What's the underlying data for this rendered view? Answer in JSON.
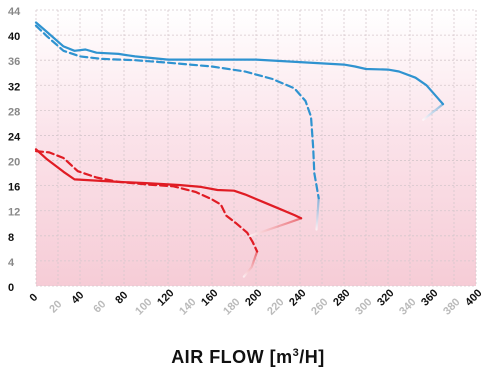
{
  "chart_data": {
    "type": "line",
    "xlabel": {
      "main": "AIR FLOW [m",
      "sup": "3",
      "tail": "/H]"
    },
    "ylabel": "",
    "title": "",
    "xlim": [
      0,
      400
    ],
    "ylim": [
      0,
      44
    ],
    "grid": true,
    "background": "pink vertical gradient",
    "x_ticks": [
      {
        "value": 0,
        "label": "0",
        "emphasis": "dark"
      },
      {
        "value": 20,
        "label": "20",
        "emphasis": "light"
      },
      {
        "value": 40,
        "label": "40",
        "emphasis": "dark"
      },
      {
        "value": 60,
        "label": "60",
        "emphasis": "light"
      },
      {
        "value": 80,
        "label": "80",
        "emphasis": "dark"
      },
      {
        "value": 100,
        "label": "100",
        "emphasis": "light"
      },
      {
        "value": 120,
        "label": "120",
        "emphasis": "dark"
      },
      {
        "value": 140,
        "label": "140",
        "emphasis": "light"
      },
      {
        "value": 160,
        "label": "160",
        "emphasis": "dark"
      },
      {
        "value": 180,
        "label": "180",
        "emphasis": "light"
      },
      {
        "value": 200,
        "label": "200",
        "emphasis": "dark"
      },
      {
        "value": 220,
        "label": "220",
        "emphasis": "light"
      },
      {
        "value": 240,
        "label": "240",
        "emphasis": "dark"
      },
      {
        "value": 260,
        "label": "260",
        "emphasis": "light"
      },
      {
        "value": 280,
        "label": "280",
        "emphasis": "dark"
      },
      {
        "value": 300,
        "label": "300",
        "emphasis": "light"
      },
      {
        "value": 320,
        "label": "320",
        "emphasis": "dark"
      },
      {
        "value": 340,
        "label": "340",
        "emphasis": "light"
      },
      {
        "value": 360,
        "label": "360",
        "emphasis": "dark"
      },
      {
        "value": 380,
        "label": "380",
        "emphasis": "light"
      },
      {
        "value": 400,
        "label": "400",
        "emphasis": "dark"
      }
    ],
    "y_ticks": [
      {
        "value": 0,
        "label": "0",
        "emphasis": "dark"
      },
      {
        "value": 4,
        "label": "4",
        "emphasis": "light"
      },
      {
        "value": 8,
        "label": "8",
        "emphasis": "dark"
      },
      {
        "value": 12,
        "label": "12",
        "emphasis": "light"
      },
      {
        "value": 16,
        "label": "16",
        "emphasis": "dark"
      },
      {
        "value": 20,
        "label": "20",
        "emphasis": "light"
      },
      {
        "value": 24,
        "label": "24",
        "emphasis": "dark"
      },
      {
        "value": 28,
        "label": "28",
        "emphasis": "light"
      },
      {
        "value": 32,
        "label": "32",
        "emphasis": "dark"
      },
      {
        "value": 36,
        "label": "36",
        "emphasis": "light"
      },
      {
        "value": 40,
        "label": "40",
        "emphasis": "dark"
      },
      {
        "value": 44,
        "label": "44",
        "emphasis": "light"
      }
    ],
    "series": [
      {
        "color": "#2f93d0",
        "style": "solid",
        "points": [
          [
            0,
            42
          ],
          [
            10,
            40.5
          ],
          [
            25,
            38.2
          ],
          [
            35,
            37.5
          ],
          [
            45,
            37.7
          ],
          [
            55,
            37.2
          ],
          [
            75,
            37
          ],
          [
            90,
            36.6
          ],
          [
            120,
            36.1
          ],
          [
            150,
            36.1
          ],
          [
            200,
            36.1
          ],
          [
            240,
            35.7
          ],
          [
            280,
            35.3
          ],
          [
            290,
            35
          ],
          [
            300,
            34.6
          ],
          [
            320,
            34.5
          ],
          [
            330,
            34.2
          ],
          [
            345,
            33.2
          ],
          [
            355,
            32
          ],
          [
            365,
            30
          ],
          [
            370,
            29
          ]
        ],
        "fade": [
          [
            370,
            29
          ],
          [
            352,
            26.5
          ]
        ]
      },
      {
        "color": "#2f93d0",
        "style": "dashed",
        "points": [
          [
            0,
            41.5
          ],
          [
            10,
            39.8
          ],
          [
            25,
            37.5
          ],
          [
            40,
            36.6
          ],
          [
            60,
            36.2
          ],
          [
            90,
            36
          ],
          [
            120,
            35.6
          ],
          [
            160,
            35
          ],
          [
            190,
            34.2
          ],
          [
            215,
            33
          ],
          [
            235,
            31.5
          ],
          [
            245,
            29.5
          ],
          [
            250,
            27
          ],
          [
            252,
            22
          ],
          [
            253,
            18
          ],
          [
            255,
            16
          ],
          [
            257,
            14
          ]
        ],
        "fade": [
          [
            257,
            14
          ],
          [
            255,
            9
          ]
        ]
      },
      {
        "color": "#e01c24",
        "style": "solid",
        "points": [
          [
            0,
            21.8
          ],
          [
            10,
            20.2
          ],
          [
            25,
            18.2
          ],
          [
            35,
            17
          ],
          [
            55,
            16.8
          ],
          [
            75,
            16.6
          ],
          [
            100,
            16.4
          ],
          [
            130,
            16.1
          ],
          [
            150,
            15.8
          ],
          [
            165,
            15.3
          ],
          [
            180,
            15.2
          ],
          [
            190,
            14.6
          ],
          [
            205,
            13.5
          ],
          [
            220,
            12.4
          ],
          [
            235,
            11.3
          ],
          [
            241,
            10.8
          ]
        ],
        "fade": [
          [
            241,
            10.8
          ],
          [
            230,
            10.1
          ],
          [
            195,
            8
          ]
        ]
      },
      {
        "color": "#e01c24",
        "style": "dashed",
        "points": [
          [
            0,
            21.5
          ],
          [
            12,
            21.3
          ],
          [
            25,
            20.4
          ],
          [
            38,
            18.3
          ],
          [
            55,
            17.3
          ],
          [
            75,
            16.6
          ],
          [
            100,
            16.2
          ],
          [
            125,
            15.9
          ],
          [
            145,
            15
          ],
          [
            160,
            13.8
          ],
          [
            168,
            13
          ],
          [
            173,
            11.2
          ],
          [
            182,
            10
          ],
          [
            192,
            8.5
          ],
          [
            197,
            7
          ],
          [
            201,
            5.5
          ]
        ],
        "fade": [
          [
            201,
            5.5
          ],
          [
            196,
            3
          ],
          [
            189,
            1.5
          ]
        ]
      }
    ]
  }
}
